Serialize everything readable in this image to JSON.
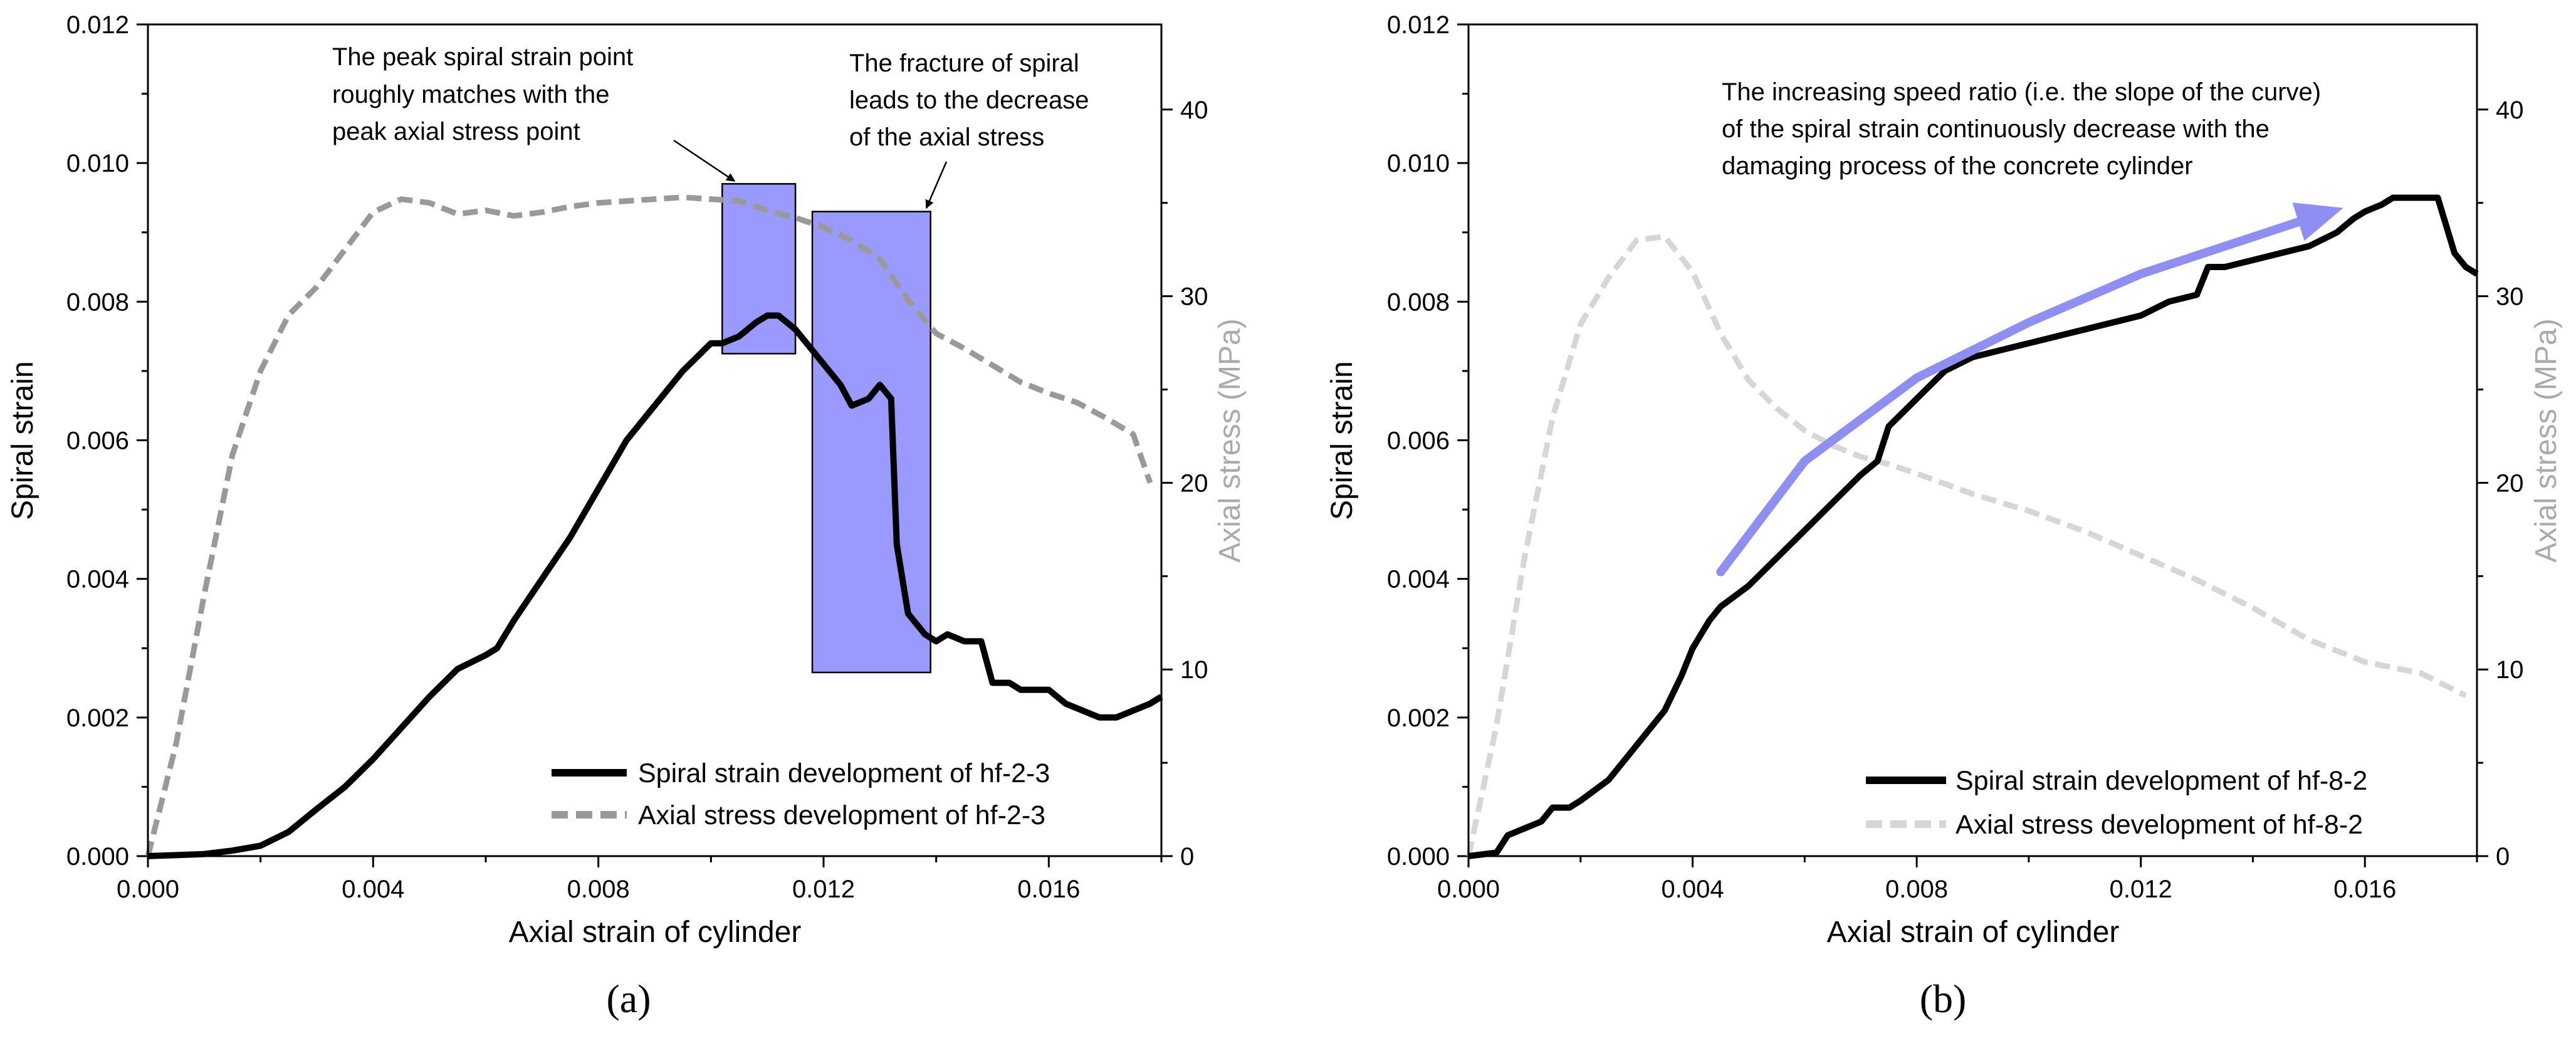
{
  "figure": {
    "panels": [
      "(a)",
      "(b)"
    ]
  },
  "colors": {
    "axis": "#000000",
    "spiral": "#000000",
    "stress_a": "#999999",
    "stress_b": "#d6d6d6",
    "right_label": "#aaaaaa",
    "highlight_fill": "#9a9afc",
    "highlight_stroke": "#000000",
    "trend_arrow": "#8f8ff2"
  },
  "chart_data": [
    {
      "type": "line",
      "panel_label": "(a)",
      "title": "",
      "xlabel": "Axial strain of cylinder",
      "ylabel": "Spiral strain",
      "y2label": "Axial stress (MPa)",
      "xlim": [
        0,
        0.018
      ],
      "ylim": [
        0,
        0.012
      ],
      "y2lim": [
        0,
        44.56
      ],
      "xticks": [
        0,
        0.004,
        0.008,
        0.012,
        0.016
      ],
      "xtick_labels": [
        "0.000",
        "0.004",
        "0.008",
        "0.012",
        "0.016"
      ],
      "yticks": [
        0,
        0.002,
        0.004,
        0.006,
        0.008,
        0.01,
        0.012
      ],
      "ytick_labels": [
        "0.000",
        "0.002",
        "0.004",
        "0.006",
        "0.008",
        "0.010",
        "0.012"
      ],
      "y2ticks": [
        0,
        10,
        20,
        30,
        40
      ],
      "y2tick_labels": [
        "0",
        "10",
        "20",
        "30",
        "40"
      ],
      "legend_position": "bottom-right",
      "series": [
        {
          "name": "Spiral strain development of hf-2-3",
          "axis": "left",
          "style": "solid",
          "x": [
            0,
            0.001,
            0.0015,
            0.002,
            0.0025,
            0.003,
            0.0035,
            0.004,
            0.0045,
            0.005,
            0.0055,
            0.006,
            0.0062,
            0.0065,
            0.007,
            0.0075,
            0.008,
            0.0085,
            0.009,
            0.0095,
            0.01,
            0.0102,
            0.0105,
            0.0108,
            0.011,
            0.0112,
            0.0115,
            0.0118,
            0.012,
            0.0123,
            0.0125,
            0.0128,
            0.013,
            0.0132,
            0.0133,
            0.0135,
            0.0138,
            0.014,
            0.0142,
            0.0145,
            0.0148,
            0.015,
            0.0153,
            0.0155,
            0.0158,
            0.016,
            0.0163,
            0.0166,
            0.0169,
            0.0172,
            0.0175,
            0.0178,
            0.018
          ],
          "y": [
            0,
            3e-05,
            8e-05,
            0.00015,
            0.00035,
            0.00068,
            0.001,
            0.0014,
            0.00185,
            0.0023,
            0.0027,
            0.0029,
            0.003,
            0.0034,
            0.004,
            0.0046,
            0.0053,
            0.006,
            0.0065,
            0.007,
            0.0074,
            0.0074,
            0.0075,
            0.0077,
            0.0078,
            0.0078,
            0.0076,
            0.0073,
            0.0071,
            0.0068,
            0.0065,
            0.0066,
            0.0068,
            0.0066,
            0.0045,
            0.0035,
            0.0032,
            0.0031,
            0.0032,
            0.0031,
            0.0031,
            0.0025,
            0.0025,
            0.0024,
            0.0024,
            0.0024,
            0.0022,
            0.0021,
            0.002,
            0.002,
            0.0021,
            0.0022,
            0.0023
          ]
        },
        {
          "name": "Axial stress development of hf-2-3",
          "axis": "right",
          "style": "dashed",
          "x": [
            0,
            0.0005,
            0.001,
            0.0015,
            0.002,
            0.0025,
            0.003,
            0.0035,
            0.004,
            0.0045,
            0.005,
            0.0055,
            0.006,
            0.0065,
            0.007,
            0.0075,
            0.008,
            0.0085,
            0.009,
            0.0095,
            0.01,
            0.0105,
            0.011,
            0.0115,
            0.012,
            0.0125,
            0.013,
            0.0135,
            0.014,
            0.0145,
            0.015,
            0.0155,
            0.016,
            0.0165,
            0.017,
            0.0175,
            0.0178
          ],
          "y": [
            0,
            6,
            14,
            21.5,
            26,
            29,
            30.5,
            32.5,
            34.5,
            35.2,
            35,
            34.4,
            34.6,
            34.3,
            34.5,
            34.8,
            35,
            35.1,
            35.2,
            35.3,
            35.2,
            35.1,
            34.6,
            34.2,
            33.7,
            33,
            32,
            29.8,
            28,
            27.2,
            26.3,
            25.4,
            24.8,
            24.3,
            23.5,
            22.6,
            20
          ]
        }
      ],
      "annotations": [
        "The peak spiral strain point",
        "roughly matches with the",
        "peak axial stress point",
        "The fracture of spiral",
        "leads to the decrease",
        "of the axial stress"
      ],
      "highlight_boxes": [
        {
          "x0": 0.0102,
          "x1": 0.0115,
          "y0": 0.00725,
          "y1": 0.0097
        },
        {
          "x0": 0.0118,
          "x1": 0.0139,
          "y0": 0.00265,
          "y1": 0.0093
        }
      ]
    },
    {
      "type": "line",
      "panel_label": "(b)",
      "title": "",
      "xlabel": "Axial strain of cylinder",
      "ylabel": "Spiral strain",
      "y2label": "Axial stress (MPa)",
      "xlim": [
        0,
        0.018
      ],
      "ylim": [
        0,
        0.012
      ],
      "y2lim": [
        0,
        44.56
      ],
      "xticks": [
        0,
        0.004,
        0.008,
        0.012,
        0.016
      ],
      "xtick_labels": [
        "0.000",
        "0.004",
        "0.008",
        "0.012",
        "0.016"
      ],
      "yticks": [
        0,
        0.002,
        0.004,
        0.006,
        0.008,
        0.01,
        0.012
      ],
      "ytick_labels": [
        "0.000",
        "0.002",
        "0.004",
        "0.006",
        "0.008",
        "0.010",
        "0.012"
      ],
      "y2ticks": [
        0,
        10,
        20,
        30,
        40
      ],
      "y2tick_labels": [
        "0",
        "10",
        "20",
        "30",
        "40"
      ],
      "legend_position": "bottom-right",
      "series": [
        {
          "name": "Spiral strain development of hf-8-2",
          "axis": "left",
          "style": "solid",
          "x": [
            0,
            0.0005,
            0.0007,
            0.001,
            0.0013,
            0.0015,
            0.0018,
            0.002,
            0.0025,
            0.003,
            0.0035,
            0.0038,
            0.004,
            0.0043,
            0.0045,
            0.005,
            0.0055,
            0.006,
            0.0065,
            0.007,
            0.0073,
            0.0075,
            0.008,
            0.0085,
            0.009,
            0.0095,
            0.01,
            0.0105,
            0.011,
            0.0115,
            0.012,
            0.0125,
            0.013,
            0.0132,
            0.0135,
            0.014,
            0.0145,
            0.015,
            0.0155,
            0.0158,
            0.016,
            0.0163,
            0.0165,
            0.017,
            0.0173,
            0.0176,
            0.0178,
            0.018
          ],
          "y": [
            0,
            5e-05,
            0.0003,
            0.0004,
            0.0005,
            0.0007,
            0.0007,
            0.0008,
            0.0011,
            0.0016,
            0.0021,
            0.0026,
            0.003,
            0.0034,
            0.0036,
            0.0039,
            0.0043,
            0.0047,
            0.0051,
            0.0055,
            0.0057,
            0.0062,
            0.0066,
            0.007,
            0.0072,
            0.0073,
            0.0074,
            0.0075,
            0.0076,
            0.0077,
            0.0078,
            0.008,
            0.0081,
            0.0085,
            0.0085,
            0.0086,
            0.0087,
            0.0088,
            0.009,
            0.0092,
            0.0093,
            0.0094,
            0.0095,
            0.0095,
            0.0095,
            0.0087,
            0.0085,
            0.0084
          ]
        },
        {
          "name": "Axial stress development of hf-8-2",
          "axis": "right",
          "style": "dashed",
          "x": [
            0,
            0.0005,
            0.001,
            0.0015,
            0.002,
            0.0025,
            0.003,
            0.0035,
            0.004,
            0.0045,
            0.005,
            0.0055,
            0.006,
            0.0065,
            0.007,
            0.0075,
            0.008,
            0.009,
            0.01,
            0.011,
            0.012,
            0.013,
            0.014,
            0.015,
            0.016,
            0.0165,
            0.017,
            0.0178
          ],
          "y": [
            0,
            7,
            16,
            23.5,
            28.5,
            31,
            33,
            33.2,
            31.3,
            28,
            25.5,
            24,
            22.8,
            22,
            21.4,
            21,
            20.5,
            19.4,
            18.5,
            17.4,
            16.1,
            14.8,
            13.3,
            11.6,
            10.4,
            10.1,
            9.8,
            8.6
          ]
        }
      ],
      "annotations": [
        "The increasing speed ratio (i.e. the slope of the curve)",
        "of the spiral strain continuously decrease with the",
        "damaging process of the concrete cylinder"
      ],
      "trend_arrow": {
        "x": [
          0.0045,
          0.006,
          0.008,
          0.01,
          0.012,
          0.0135,
          0.015,
          0.0154
        ],
        "y": [
          0.0041,
          0.0057,
          0.0069,
          0.0077,
          0.0084,
          0.0088,
          0.0092,
          0.0093
        ]
      }
    }
  ]
}
